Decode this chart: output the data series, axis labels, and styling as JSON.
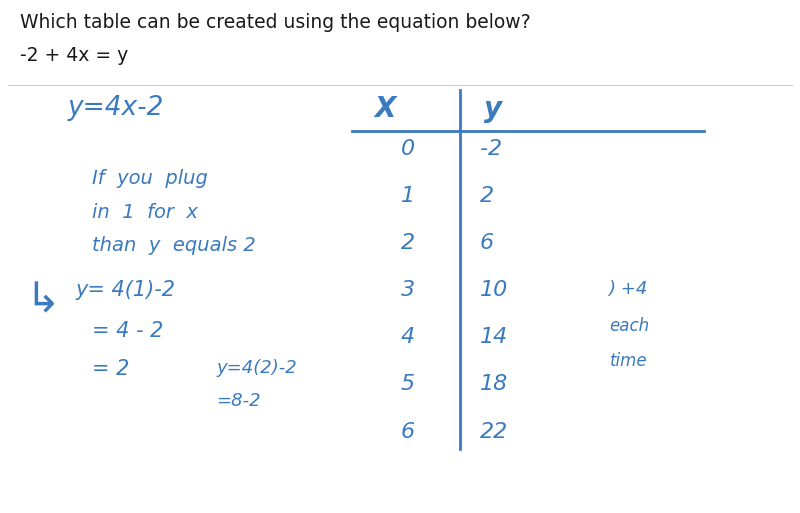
{
  "title_line1": "Which table can be created using the equation below?",
  "title_line2": "-2 + 4x = y",
  "bg_color": "#ffffff",
  "text_color": "#3a7abf",
  "black": "#1a1a1a",
  "equation_top": "y=4x-2",
  "table_header_x": "X",
  "table_header_y": "y",
  "x_values": [
    "0",
    "1",
    "2",
    "3",
    "4",
    "5",
    "6"
  ],
  "y_values": [
    "-2",
    "2",
    "6",
    "10",
    "14",
    "18",
    "22"
  ],
  "note_line1": "If  you  plug",
  "note_line2": "in  1  for  x",
  "note_line3": "than  y  equals 2",
  "step1": "y= 4(1)-2",
  "step2": "= 4 - 2",
  "step3": "= 2",
  "step4": "y=4(2)-2",
  "step5": "=8-2",
  "side_note_line1": ") +4",
  "side_note_line2": "each",
  "side_note_line3": "time"
}
